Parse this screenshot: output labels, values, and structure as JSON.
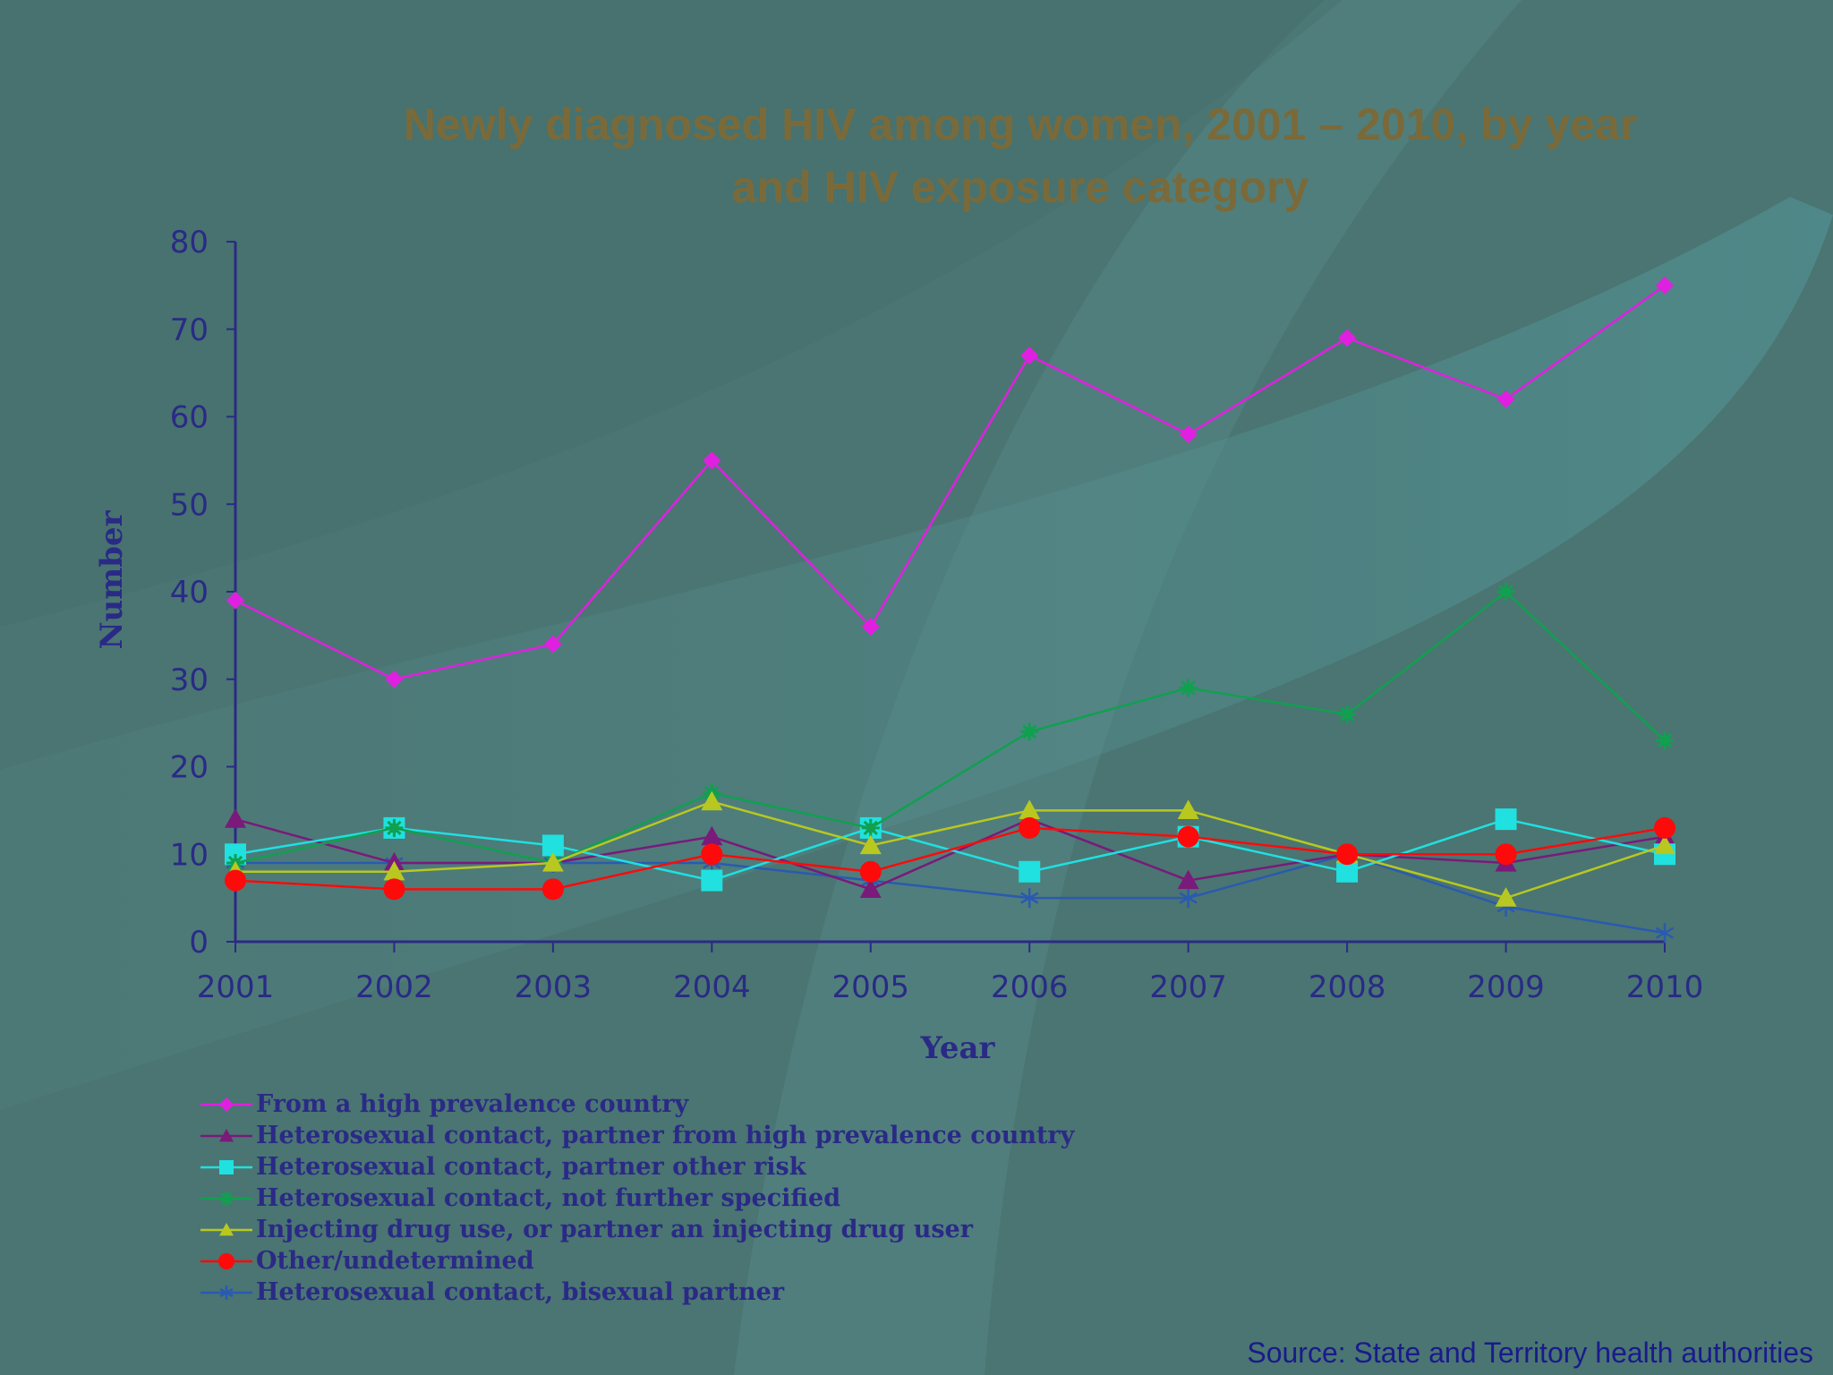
{
  "colors": {
    "background": "#4a7572",
    "title": "#7a6a3a",
    "axis": "#2a2a86"
  },
  "chart_data": {
    "type": "line",
    "title": [
      "Newly diagnosed HIV among women, 2001 – 2010, by year",
      "and HIV exposure category"
    ],
    "xlabel": "Year",
    "ylabel": "Number",
    "x": [
      "2001",
      "2002",
      "2003",
      "2004",
      "2005",
      "2006",
      "2007",
      "2008",
      "2009",
      "2010"
    ],
    "ylim": [
      0,
      80
    ],
    "yticks": [
      "0",
      "10",
      "20",
      "30",
      "40",
      "50",
      "60",
      "70",
      "80"
    ],
    "grid": false,
    "legend_position": "bottom-left",
    "series": [
      {
        "name": "From a high prevalence country",
        "color": "#e020e0",
        "marker": "diamond",
        "values": [
          39,
          30,
          34,
          55,
          36,
          67,
          58,
          69,
          62,
          75
        ]
      },
      {
        "name": "Heterosexual contact, partner from high prevalence country",
        "color": "#7a1a7a",
        "marker": "triangle",
        "values": [
          14,
          9,
          9,
          12,
          6,
          14,
          7,
          10,
          9,
          12
        ]
      },
      {
        "name": "Heterosexual contact, partner other risk",
        "color": "#20e0e0",
        "marker": "square",
        "values": [
          10,
          13,
          11,
          7,
          13,
          8,
          12,
          8,
          14,
          10
        ]
      },
      {
        "name": "Heterosexual contact, not further specified",
        "color": "#10a050",
        "marker": "star",
        "values": [
          9,
          13,
          9,
          17,
          13,
          24,
          29,
          26,
          40,
          23
        ]
      },
      {
        "name": "Injecting drug use, or partner an injecting drug user",
        "color": "#b8c820",
        "marker": "triangle",
        "values": [
          8,
          8,
          9,
          16,
          11,
          15,
          15,
          10,
          5,
          11
        ]
      },
      {
        "name": "Other/undetermined",
        "color": "#ff0a0a",
        "marker": "circle",
        "values": [
          7,
          6,
          6,
          10,
          8,
          13,
          12,
          10,
          10,
          13
        ]
      },
      {
        "name": "Heterosexual contact, bisexual partner",
        "color": "#2a5ab0",
        "marker": "asterisk",
        "values": [
          9,
          9,
          9,
          9,
          7,
          5,
          5,
          10,
          4,
          1
        ]
      }
    ]
  },
  "source": "Source: State and Territory health authorities"
}
